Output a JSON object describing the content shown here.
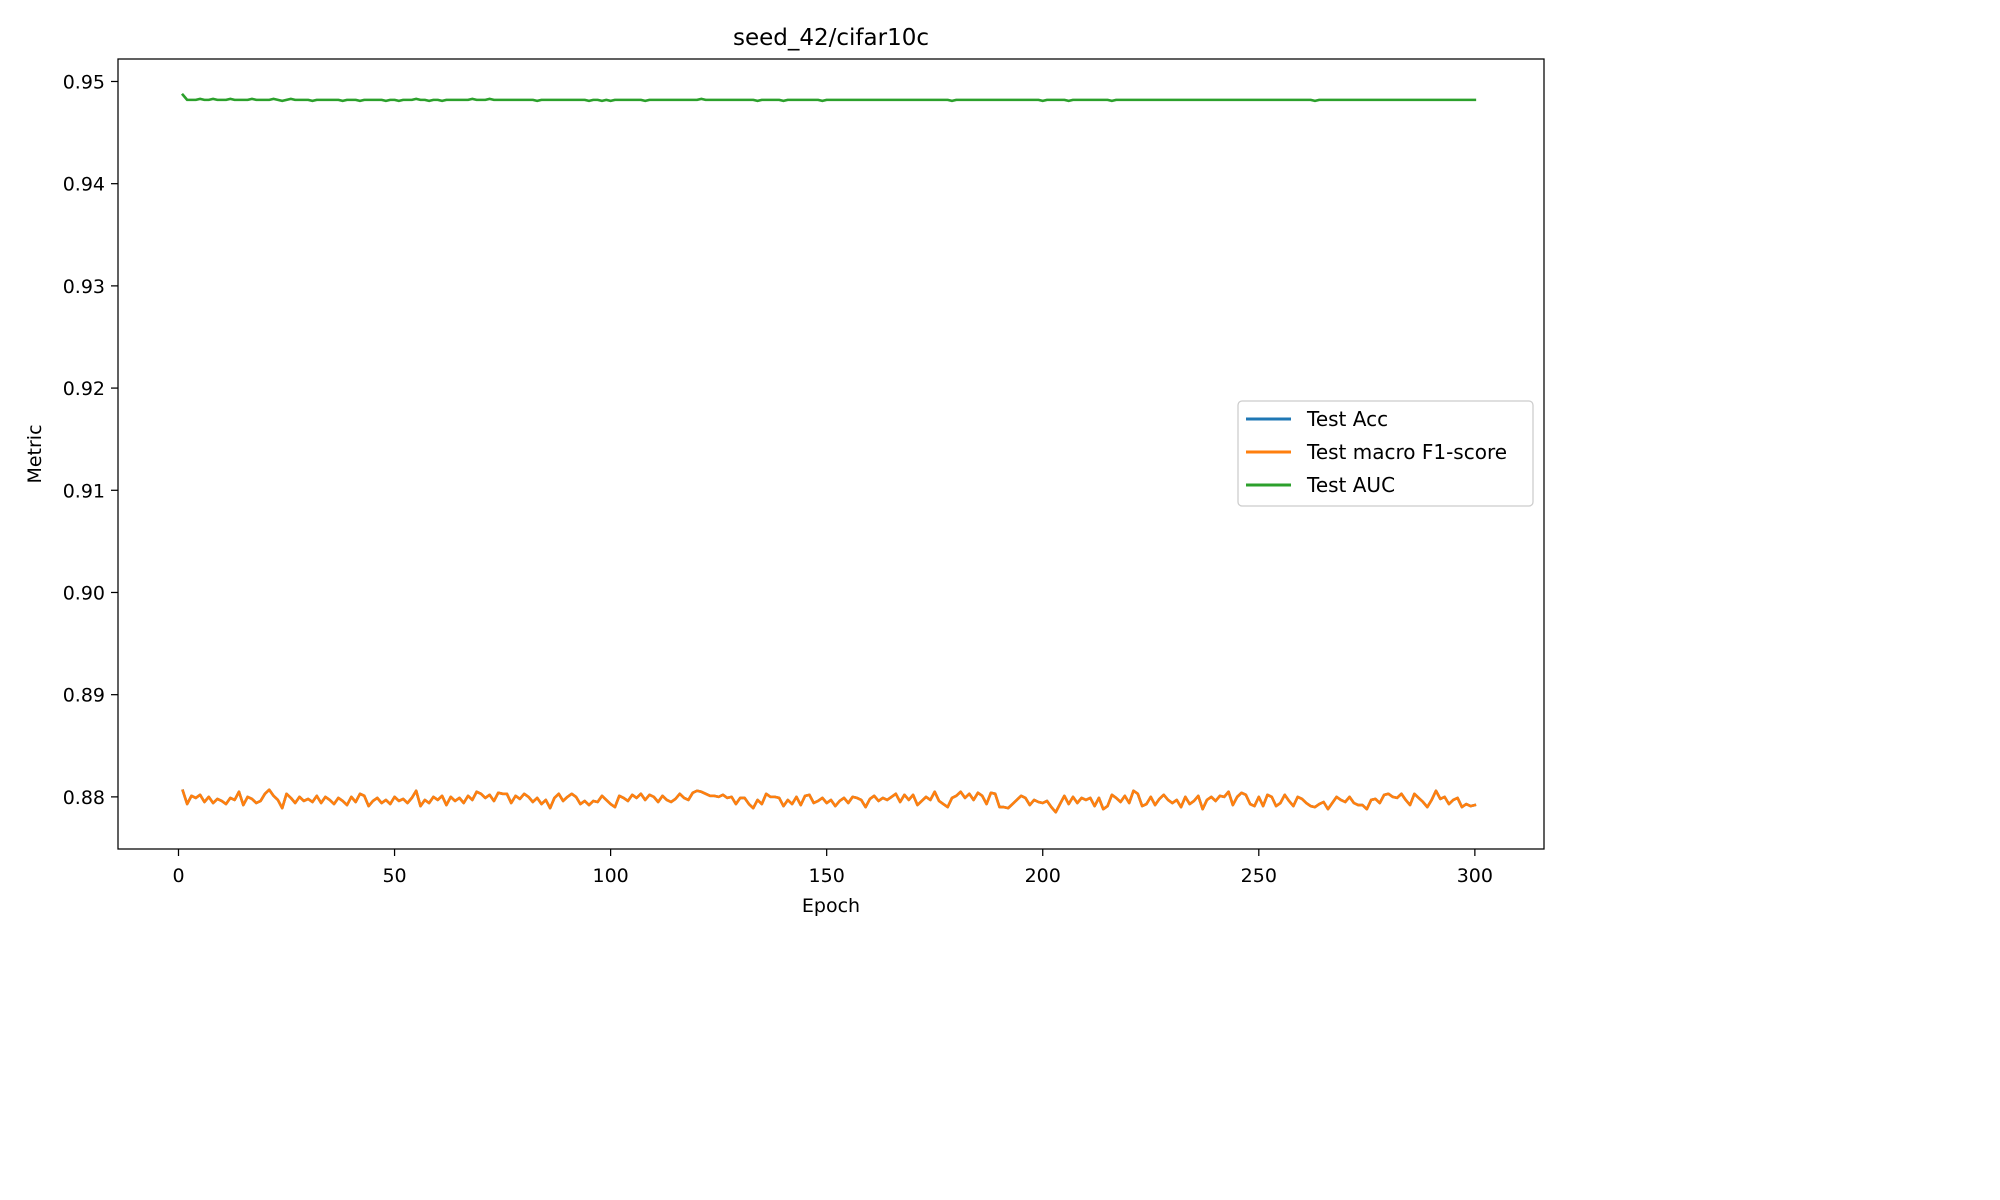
{
  "chart_data": {
    "type": "line",
    "title": "seed_42/cifar10c",
    "xlabel": "Epoch",
    "ylabel": "Metric",
    "xlim": [
      -14,
      316
    ],
    "ylim": [
      0.8749,
      0.9522
    ],
    "xticks": [
      0,
      50,
      100,
      150,
      200,
      250,
      300
    ],
    "xtick_labels": [
      "0",
      "50",
      "100",
      "150",
      "200",
      "250",
      "300"
    ],
    "yticks": [
      0.88,
      0.89,
      0.9,
      0.91,
      0.92,
      0.93,
      0.94,
      0.95
    ],
    "ytick_labels": [
      "0.88",
      "0.89",
      "0.90",
      "0.91",
      "0.92",
      "0.93",
      "0.94",
      "0.95"
    ],
    "grid": false,
    "legend_position": "center-right",
    "epochs": {
      "start": 1,
      "end": 300
    },
    "series": [
      {
        "name": "Test Acc",
        "color": "#1f77b4",
        "note_hidden_under": "Test macro F1-score",
        "values": [
          0.8806,
          0.8793,
          0.8801,
          0.8799,
          0.8802,
          0.8795,
          0.88,
          0.8794,
          0.8798,
          0.8796,
          0.8793,
          0.8799,
          0.8797,
          0.8805,
          0.8792,
          0.88,
          0.8798,
          0.8794,
          0.8796,
          0.8803,
          0.8807,
          0.8801,
          0.8797,
          0.8789,
          0.8803,
          0.8799,
          0.8794,
          0.88,
          0.8796,
          0.8798,
          0.8795,
          0.8801,
          0.8794,
          0.88,
          0.8797,
          0.8793,
          0.8799,
          0.8796,
          0.8792,
          0.88,
          0.8795,
          0.8803,
          0.8801,
          0.8791,
          0.8796,
          0.8799,
          0.8794,
          0.8797,
          0.8793,
          0.88,
          0.8796,
          0.8798,
          0.8794,
          0.8799,
          0.8806,
          0.8791,
          0.8797,
          0.8794,
          0.88,
          0.8797,
          0.8801,
          0.8792,
          0.88,
          0.8796,
          0.8799,
          0.8794,
          0.8801,
          0.8797,
          0.8805,
          0.8803,
          0.8799,
          0.8802,
          0.8796,
          0.8804,
          0.8803,
          0.8803,
          0.8794,
          0.8801,
          0.8798,
          0.8803,
          0.88,
          0.8795,
          0.8799,
          0.8793,
          0.8797,
          0.8789,
          0.8799,
          0.8803,
          0.8796,
          0.88,
          0.8803,
          0.88,
          0.8793,
          0.8796,
          0.8792,
          0.8796,
          0.8795,
          0.8801,
          0.8797,
          0.8793,
          0.879,
          0.8801,
          0.8799,
          0.8796,
          0.8802,
          0.8799,
          0.8803,
          0.8797,
          0.8802,
          0.88,
          0.8795,
          0.8801,
          0.8797,
          0.8795,
          0.8798,
          0.8803,
          0.8799,
          0.8797,
          0.8804,
          0.8806,
          0.8805,
          0.8803,
          0.8801,
          0.8801,
          0.88,
          0.8802,
          0.8799,
          0.88,
          0.8793,
          0.8799,
          0.8799,
          0.8793,
          0.8789,
          0.8797,
          0.8793,
          0.8803,
          0.88,
          0.88,
          0.8799,
          0.8791,
          0.8797,
          0.8793,
          0.88,
          0.8792,
          0.8801,
          0.8802,
          0.8794,
          0.8796,
          0.8799,
          0.8794,
          0.8797,
          0.8791,
          0.8796,
          0.8799,
          0.8794,
          0.88,
          0.8799,
          0.8797,
          0.879,
          0.8798,
          0.8801,
          0.8796,
          0.8799,
          0.8797,
          0.88,
          0.8803,
          0.8795,
          0.8802,
          0.8797,
          0.8802,
          0.8792,
          0.8796,
          0.88,
          0.8797,
          0.8805,
          0.8796,
          0.8793,
          0.879,
          0.8799,
          0.8801,
          0.8805,
          0.8799,
          0.8803,
          0.8797,
          0.8804,
          0.8801,
          0.8793,
          0.8804,
          0.8803,
          0.879,
          0.879,
          0.8789,
          0.8793,
          0.8797,
          0.8801,
          0.8799,
          0.8792,
          0.8797,
          0.8795,
          0.8794,
          0.8796,
          0.879,
          0.8785,
          0.8793,
          0.8801,
          0.8793,
          0.88,
          0.8794,
          0.8799,
          0.8797,
          0.8799,
          0.8791,
          0.8799,
          0.8788,
          0.8791,
          0.8802,
          0.8799,
          0.8795,
          0.8801,
          0.8794,
          0.8806,
          0.8803,
          0.8791,
          0.8793,
          0.88,
          0.8792,
          0.8798,
          0.8802,
          0.8797,
          0.8794,
          0.8797,
          0.879,
          0.88,
          0.8793,
          0.8796,
          0.8801,
          0.8788,
          0.8797,
          0.88,
          0.8796,
          0.8801,
          0.88,
          0.8805,
          0.8792,
          0.88,
          0.8804,
          0.8802,
          0.8793,
          0.8791,
          0.88,
          0.8791,
          0.8802,
          0.88,
          0.8791,
          0.8794,
          0.8802,
          0.8796,
          0.8791,
          0.88,
          0.8798,
          0.8794,
          0.8791,
          0.879,
          0.8793,
          0.8795,
          0.8788,
          0.8794,
          0.88,
          0.8797,
          0.8795,
          0.88,
          0.8794,
          0.8792,
          0.8792,
          0.8788,
          0.8797,
          0.8798,
          0.8794,
          0.8802,
          0.8803,
          0.88,
          0.8799,
          0.8803,
          0.8797,
          0.8792,
          0.8803,
          0.8799,
          0.8795,
          0.879,
          0.8797,
          0.8806,
          0.8798,
          0.88,
          0.8793,
          0.8797,
          0.8799,
          0.879,
          0.8793,
          0.8791,
          0.8792
        ]
      },
      {
        "name": "Test macro F1-score",
        "color": "#ff7f0e",
        "values": [
          0.8806,
          0.8793,
          0.8801,
          0.8799,
          0.8802,
          0.8795,
          0.88,
          0.8794,
          0.8798,
          0.8796,
          0.8793,
          0.8799,
          0.8797,
          0.8805,
          0.8792,
          0.88,
          0.8798,
          0.8794,
          0.8796,
          0.8803,
          0.8807,
          0.8801,
          0.8797,
          0.8789,
          0.8803,
          0.8799,
          0.8794,
          0.88,
          0.8796,
          0.8798,
          0.8795,
          0.8801,
          0.8794,
          0.88,
          0.8797,
          0.8793,
          0.8799,
          0.8796,
          0.8792,
          0.88,
          0.8795,
          0.8803,
          0.8801,
          0.8791,
          0.8796,
          0.8799,
          0.8794,
          0.8797,
          0.8793,
          0.88,
          0.8796,
          0.8798,
          0.8794,
          0.8799,
          0.8806,
          0.8791,
          0.8797,
          0.8794,
          0.88,
          0.8797,
          0.8801,
          0.8792,
          0.88,
          0.8796,
          0.8799,
          0.8794,
          0.8801,
          0.8797,
          0.8805,
          0.8803,
          0.8799,
          0.8802,
          0.8796,
          0.8804,
          0.8803,
          0.8803,
          0.8794,
          0.8801,
          0.8798,
          0.8803,
          0.88,
          0.8795,
          0.8799,
          0.8793,
          0.8797,
          0.8789,
          0.8799,
          0.8803,
          0.8796,
          0.88,
          0.8803,
          0.88,
          0.8793,
          0.8796,
          0.8792,
          0.8796,
          0.8795,
          0.8801,
          0.8797,
          0.8793,
          0.879,
          0.8801,
          0.8799,
          0.8796,
          0.8802,
          0.8799,
          0.8803,
          0.8797,
          0.8802,
          0.88,
          0.8795,
          0.8801,
          0.8797,
          0.8795,
          0.8798,
          0.8803,
          0.8799,
          0.8797,
          0.8804,
          0.8806,
          0.8805,
          0.8803,
          0.8801,
          0.8801,
          0.88,
          0.8802,
          0.8799,
          0.88,
          0.8793,
          0.8799,
          0.8799,
          0.8793,
          0.8789,
          0.8797,
          0.8793,
          0.8803,
          0.88,
          0.88,
          0.8799,
          0.8791,
          0.8797,
          0.8793,
          0.88,
          0.8792,
          0.8801,
          0.8802,
          0.8794,
          0.8796,
          0.8799,
          0.8794,
          0.8797,
          0.8791,
          0.8796,
          0.8799,
          0.8794,
          0.88,
          0.8799,
          0.8797,
          0.879,
          0.8798,
          0.8801,
          0.8796,
          0.8799,
          0.8797,
          0.88,
          0.8803,
          0.8795,
          0.8802,
          0.8797,
          0.8802,
          0.8792,
          0.8796,
          0.88,
          0.8797,
          0.8805,
          0.8796,
          0.8793,
          0.879,
          0.8799,
          0.8801,
          0.8805,
          0.8799,
          0.8803,
          0.8797,
          0.8804,
          0.8801,
          0.8793,
          0.8804,
          0.8803,
          0.879,
          0.879,
          0.8789,
          0.8793,
          0.8797,
          0.8801,
          0.8799,
          0.8792,
          0.8797,
          0.8795,
          0.8794,
          0.8796,
          0.879,
          0.8785,
          0.8793,
          0.8801,
          0.8793,
          0.88,
          0.8794,
          0.8799,
          0.8797,
          0.8799,
          0.8791,
          0.8799,
          0.8788,
          0.8791,
          0.8802,
          0.8799,
          0.8795,
          0.8801,
          0.8794,
          0.8806,
          0.8803,
          0.8791,
          0.8793,
          0.88,
          0.8792,
          0.8798,
          0.8802,
          0.8797,
          0.8794,
          0.8797,
          0.879,
          0.88,
          0.8793,
          0.8796,
          0.8801,
          0.8788,
          0.8797,
          0.88,
          0.8796,
          0.8801,
          0.88,
          0.8805,
          0.8792,
          0.88,
          0.8804,
          0.8802,
          0.8793,
          0.8791,
          0.88,
          0.8791,
          0.8802,
          0.88,
          0.8791,
          0.8794,
          0.8802,
          0.8796,
          0.8791,
          0.88,
          0.8798,
          0.8794,
          0.8791,
          0.879,
          0.8793,
          0.8795,
          0.8788,
          0.8794,
          0.88,
          0.8797,
          0.8795,
          0.88,
          0.8794,
          0.8792,
          0.8792,
          0.8788,
          0.8797,
          0.8798,
          0.8794,
          0.8802,
          0.8803,
          0.88,
          0.8799,
          0.8803,
          0.8797,
          0.8792,
          0.8803,
          0.8799,
          0.8795,
          0.879,
          0.8797,
          0.8806,
          0.8798,
          0.88,
          0.8793,
          0.8797,
          0.8799,
          0.879,
          0.8793,
          0.8791,
          0.8792
        ]
      },
      {
        "name": "Test AUC",
        "color": "#2ca02c",
        "values": [
          0.9487,
          0.9482,
          0.9482,
          0.9482,
          0.9483,
          0.9482,
          0.9482,
          0.9483,
          0.9482,
          0.9482,
          0.9482,
          0.9483,
          0.9482,
          0.9482,
          0.9482,
          0.9482,
          0.9483,
          0.9482,
          0.9482,
          0.9482,
          0.9482,
          0.9483,
          0.9482,
          0.9481,
          0.9482,
          0.9483,
          0.9482,
          0.9482,
          0.9482,
          0.9482,
          0.9481,
          0.9482,
          0.9482,
          0.9482,
          0.9482,
          0.9482,
          0.9482,
          0.9481,
          0.9482,
          0.9482,
          0.9482,
          0.9481,
          0.9482,
          0.9482,
          0.9482,
          0.9482,
          0.9482,
          0.9481,
          0.9482,
          0.9482,
          0.9481,
          0.9482,
          0.9482,
          0.9482,
          0.9483,
          0.9482,
          0.9482,
          0.9481,
          0.9482,
          0.9482,
          0.9481,
          0.9482,
          0.9482,
          0.9482,
          0.9482,
          0.9482,
          0.9482,
          0.9483,
          0.9482,
          0.9482,
          0.9482,
          0.9483,
          0.9482,
          0.9482,
          0.9482,
          0.9482,
          0.9482,
          0.9482,
          0.9482,
          0.9482,
          0.9482,
          0.9482,
          0.9481,
          0.9482,
          0.9482,
          0.9482,
          0.9482,
          0.9482,
          0.9482,
          0.9482,
          0.9482,
          0.9482,
          0.9482,
          0.9482,
          0.9481,
          0.9482,
          0.9482,
          0.9481,
          0.9482,
          0.9481,
          0.9482,
          0.9482,
          0.9482,
          0.9482,
          0.9482,
          0.9482,
          0.9482,
          0.9481,
          0.9482,
          0.9482,
          0.9482,
          0.9482,
          0.9482,
          0.9482,
          0.9482,
          0.9482,
          0.9482,
          0.9482,
          0.9482,
          0.9482,
          0.9483,
          0.9482,
          0.9482,
          0.9482,
          0.9482,
          0.9482,
          0.9482,
          0.9482,
          0.9482,
          0.9482,
          0.9482,
          0.9482,
          0.9482,
          0.9481,
          0.9482,
          0.9482,
          0.9482,
          0.9482,
          0.9482,
          0.9481,
          0.9482,
          0.9482,
          0.9482,
          0.9482,
          0.9482,
          0.9482,
          0.9482,
          0.9482,
          0.9481,
          0.9482,
          0.9482,
          0.9482,
          0.9482,
          0.9482,
          0.9482,
          0.9482,
          0.9482,
          0.9482,
          0.9482,
          0.9482,
          0.9482,
          0.9482,
          0.9482,
          0.9482,
          0.9482,
          0.9482,
          0.9482,
          0.9482,
          0.9482,
          0.9482,
          0.9482,
          0.9482,
          0.9482,
          0.9482,
          0.9482,
          0.9482,
          0.9482,
          0.9482,
          0.9481,
          0.9482,
          0.9482,
          0.9482,
          0.9482,
          0.9482,
          0.9482,
          0.9482,
          0.9482,
          0.9482,
          0.9482,
          0.9482,
          0.9482,
          0.9482,
          0.9482,
          0.9482,
          0.9482,
          0.9482,
          0.9482,
          0.9482,
          0.9482,
          0.9481,
          0.9482,
          0.9482,
          0.9482,
          0.9482,
          0.9482,
          0.9481,
          0.9482,
          0.9482,
          0.9482,
          0.9482,
          0.9482,
          0.9482,
          0.9482,
          0.9482,
          0.9482,
          0.9481,
          0.9482,
          0.9482,
          0.9482,
          0.9482,
          0.9482,
          0.9482,
          0.9482,
          0.9482,
          0.9482,
          0.9482,
          0.9482,
          0.9482,
          0.9482,
          0.9482,
          0.9482,
          0.9482,
          0.9482,
          0.9482,
          0.9482,
          0.9482,
          0.9482,
          0.9482,
          0.9482,
          0.9482,
          0.9482,
          0.9482,
          0.9482,
          0.9482,
          0.9482,
          0.9482,
          0.9482,
          0.9482,
          0.9482,
          0.9482,
          0.9482,
          0.9482,
          0.9482,
          0.9482,
          0.9482,
          0.9482,
          0.9482,
          0.9482,
          0.9482,
          0.9482,
          0.9482,
          0.9482,
          0.9481,
          0.9482,
          0.9482,
          0.9482,
          0.9482,
          0.9482,
          0.9482,
          0.9482,
          0.9482,
          0.9482,
          0.9482,
          0.9482,
          0.9482,
          0.9482,
          0.9482,
          0.9482,
          0.9482,
          0.9482,
          0.9482,
          0.9482,
          0.9482,
          0.9482,
          0.9482,
          0.9482,
          0.9482,
          0.9482,
          0.9482,
          0.9482,
          0.9482,
          0.9482,
          0.9482,
          0.9482,
          0.9482,
          0.9482,
          0.9482,
          0.9482,
          0.9482,
          0.9482
        ]
      }
    ]
  }
}
